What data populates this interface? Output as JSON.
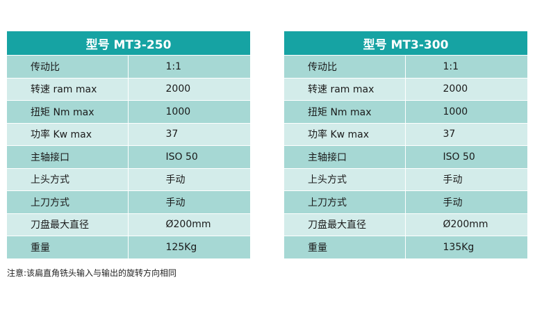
{
  "tables": [
    {
      "title": "型号 MT3-250",
      "rows": [
        {
          "label": "传动比",
          "value": "1:1"
        },
        {
          "label": "转速 ram max",
          "value": "2000"
        },
        {
          "label": "扭矩 Nm max",
          "value": "1000"
        },
        {
          "label": "功率 Kw max",
          "value": "37"
        },
        {
          "label": "主轴接口",
          "value": "ISO 50"
        },
        {
          "label": "上头方式",
          "value": "手动"
        },
        {
          "label": "上刀方式",
          "value": "手动"
        },
        {
          "label": "刀盘最大直径",
          "value": "Ø200mm"
        },
        {
          "label": "重量",
          "value": "125Kg"
        }
      ]
    },
    {
      "title": "型号 MT3-300",
      "rows": [
        {
          "label": "传动比",
          "value": "1:1"
        },
        {
          "label": "转速 ram max",
          "value": "2000"
        },
        {
          "label": "扭矩 Nm max",
          "value": "1000"
        },
        {
          "label": "功率 Kw max",
          "value": "37"
        },
        {
          "label": "主轴接口",
          "value": "ISO 50"
        },
        {
          "label": "上头方式",
          "value": "手动"
        },
        {
          "label": "上刀方式",
          "value": "手动"
        },
        {
          "label": "刀盘最大直径",
          "value": "Ø200mm"
        },
        {
          "label": "重量",
          "value": "135Kg"
        }
      ]
    }
  ],
  "note": "注意:该扁直角铣头输入与输出的旋转方向相同",
  "colors": {
    "header": "#16a3a3",
    "row_dark": "#a6d8d4",
    "row_light": "#d3ecea"
  }
}
